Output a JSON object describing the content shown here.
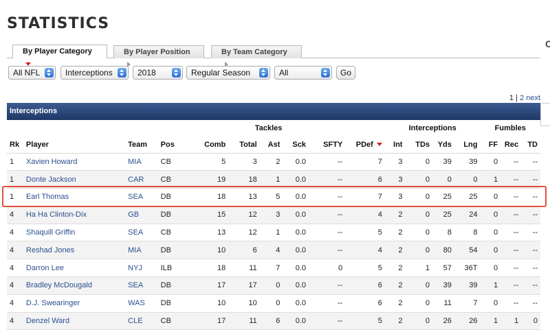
{
  "page": {
    "title": "STATISTICS",
    "edge_letter": "C"
  },
  "tabs": [
    {
      "label": "By Player Category",
      "active": true,
      "arrow": "red-down-arrow"
    },
    {
      "label": "By Player Position",
      "active": false,
      "arrow": "gray-right-arrow"
    },
    {
      "label": "By Team Category",
      "active": false,
      "arrow": "gray-right-arrow"
    }
  ],
  "filters": {
    "league": "All NFL",
    "category": "Interceptions",
    "season": "2018",
    "season_type": "Regular Season",
    "team": "All",
    "go_label": "Go",
    "stepper_icon": "select-stepper-icon"
  },
  "pager": {
    "current": "1",
    "separator": "|",
    "page2": "2",
    "next": "next"
  },
  "section": {
    "title": "Interceptions",
    "header_color": "#2b4677"
  },
  "table": {
    "groups": {
      "tackles": "Tackles",
      "interceptions": "Interceptions",
      "fumbles": "Fumbles"
    },
    "columns": [
      "Rk",
      "Player",
      "Team",
      "Pos",
      "Comb",
      "Total",
      "Ast",
      "Sck",
      "SFTY",
      "PDef",
      "Int",
      "TDs",
      "Yds",
      "Lng",
      "FF",
      "Rec",
      "TD"
    ],
    "sorted_column": "PDef",
    "rows": [
      [
        "1",
        "Xavien Howard",
        "MIA",
        "CB",
        "5",
        "3",
        "2",
        "0.0",
        "--",
        "7",
        "3",
        "0",
        "39",
        "39",
        "0",
        "--",
        "--"
      ],
      [
        "1",
        "Donte Jackson",
        "CAR",
        "CB",
        "19",
        "18",
        "1",
        "0.0",
        "--",
        "6",
        "3",
        "0",
        "0",
        "0",
        "1",
        "--",
        "--"
      ],
      [
        "1",
        "Earl Thomas",
        "SEA",
        "DB",
        "18",
        "13",
        "5",
        "0.0",
        "--",
        "7",
        "3",
        "0",
        "25",
        "25",
        "0",
        "--",
        "--"
      ],
      [
        "4",
        "Ha Ha Clinton-Dix",
        "GB",
        "DB",
        "15",
        "12",
        "3",
        "0.0",
        "--",
        "4",
        "2",
        "0",
        "25",
        "24",
        "0",
        "--",
        "--"
      ],
      [
        "4",
        "Shaquill Griffin",
        "SEA",
        "CB",
        "13",
        "12",
        "1",
        "0.0",
        "--",
        "5",
        "2",
        "0",
        "8",
        "8",
        "0",
        "--",
        "--"
      ],
      [
        "4",
        "Reshad Jones",
        "MIA",
        "DB",
        "10",
        "6",
        "4",
        "0.0",
        "--",
        "4",
        "2",
        "0",
        "80",
        "54",
        "0",
        "--",
        "--"
      ],
      [
        "4",
        "Darron Lee",
        "NYJ",
        "ILB",
        "18",
        "11",
        "7",
        "0.0",
        "0",
        "5",
        "2",
        "1",
        "57",
        "36T",
        "0",
        "--",
        "--"
      ],
      [
        "4",
        "Bradley McDougald",
        "SEA",
        "DB",
        "17",
        "17",
        "0",
        "0.0",
        "--",
        "6",
        "2",
        "0",
        "39",
        "39",
        "1",
        "--",
        "--"
      ],
      [
        "4",
        "D.J. Swearinger",
        "WAS",
        "DB",
        "10",
        "10",
        "0",
        "0.0",
        "--",
        "6",
        "2",
        "0",
        "11",
        "7",
        "0",
        "--",
        "--"
      ],
      [
        "4",
        "Denzel Ward",
        "CLE",
        "CB",
        "17",
        "11",
        "6",
        "0.0",
        "--",
        "5",
        "2",
        "0",
        "26",
        "26",
        "1",
        "1",
        "0"
      ]
    ],
    "highlighted_row": 2,
    "highlight_color": "#e0503a"
  }
}
